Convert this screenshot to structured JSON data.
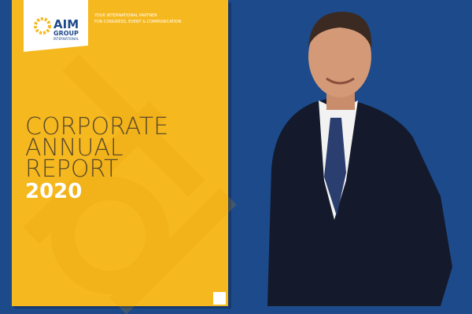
{
  "logo": {
    "name": "AIM",
    "line1": "GROUP",
    "line2": "INTERNATIONAL"
  },
  "tagline": [
    "YOUR INTERNATIONAL PARTNER",
    "FOR CONGRESS, EVENT & COMMUNICATION"
  ],
  "cover": {
    "title": [
      "CORPORATE",
      "ANNUAL",
      "REPORT"
    ],
    "year": "2020"
  }
}
